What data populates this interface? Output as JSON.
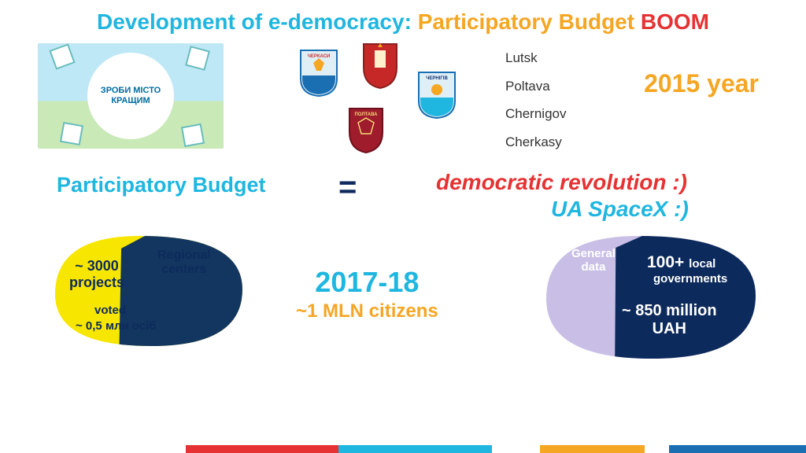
{
  "title": {
    "t1": "Development of e-democracy:",
    "t2": "Participatory Budget",
    "t3": "BOOM"
  },
  "promo": {
    "line1": "ЗРОБИ МІСТО",
    "line2": "КРАЩИМ"
  },
  "cities": [
    "Lutsk",
    "Poltava",
    "Chernigov",
    "Cherkasy"
  ],
  "crest_labels": [
    "ЧЕРКАСИ",
    "",
    "ЧЕРНІГІВ",
    "ПОЛТАВА"
  ],
  "year_2015": "2015 year",
  "middle": {
    "pb": "Participatory Budget",
    "eq": "=",
    "dem": "democratic revolution :)",
    "spacex": "UA SpaceX :)"
  },
  "leaf_left": {
    "projects_n": "~ 3000",
    "projects_lbl": "projects",
    "regional": "Regional",
    "centers": "centers",
    "voted": "voted",
    "voted_n": "~ 0,5 млн осіб",
    "colors": {
      "yellow": "#f7e600",
      "navy": "#12365f"
    }
  },
  "center_years": {
    "y1": "2017-18",
    "y2": "~1 MLN citizens"
  },
  "leaf_right": {
    "general": "General",
    "data": "data",
    "hundred": "100+",
    "local": "local",
    "gov": "governments",
    "uah": "~ 850 million",
    "uah2": "UAH",
    "colors": {
      "lilac": "#c9bfe6",
      "navy": "#0d2a5c"
    }
  },
  "bottom_bar": [
    {
      "color": "#ffffff",
      "pct": 23
    },
    {
      "color": "#e63232",
      "pct": 19
    },
    {
      "color": "#1fb6e0",
      "pct": 19
    },
    {
      "color": "#ffffff",
      "pct": 6
    },
    {
      "color": "#f5a623",
      "pct": 13
    },
    {
      "color": "#ffffff",
      "pct": 3
    },
    {
      "color": "#1a6fb3",
      "pct": 17
    }
  ],
  "colors": {
    "cyan": "#1fb6e0",
    "orange": "#f5a623",
    "red": "#e63232",
    "navy": "#0d2a5c"
  }
}
